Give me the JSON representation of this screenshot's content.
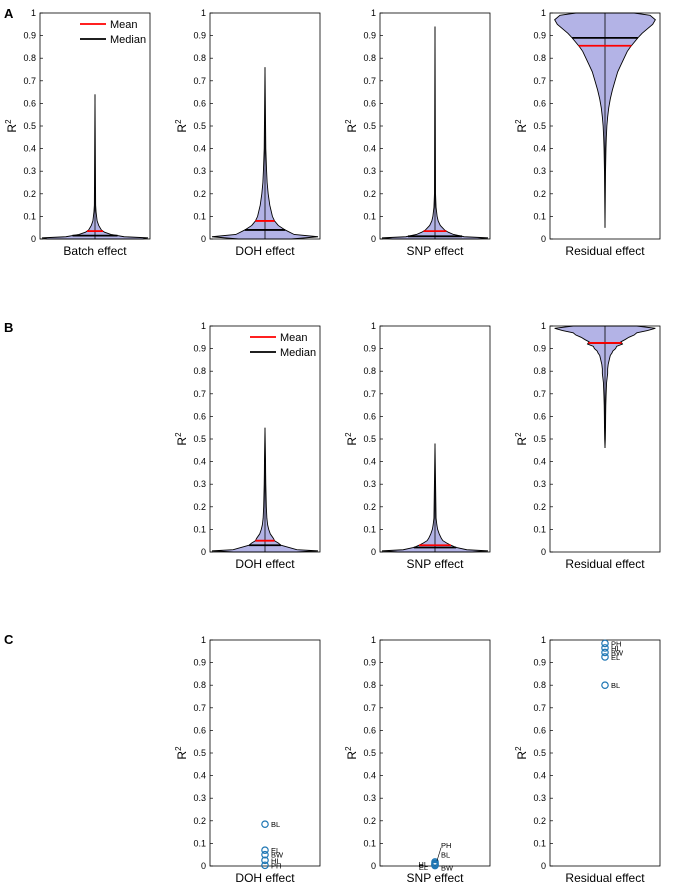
{
  "figure": {
    "colors": {
      "violin_fill": "#b3b3e6",
      "mean": "#ff0000",
      "median": "#000000",
      "point": "#1f77b4"
    },
    "legend": {
      "mean_label": "Mean",
      "median_label": "Median"
    },
    "ylabel_main": "R",
    "ylabel_sup": "2"
  },
  "chart_data": [
    {
      "panel": "A",
      "type": "violin",
      "ylim": [
        0,
        1
      ],
      "yticks": [
        "0",
        "0.1",
        "0.2",
        "0.3",
        "0.4",
        "0.5",
        "0.6",
        "0.7",
        "0.8",
        "0.9",
        "1"
      ],
      "legend": true,
      "subplots": [
        {
          "col": 0,
          "xlabel": "Batch effect",
          "mean": 0.035,
          "median": 0.015,
          "max": 0.64,
          "min": 0.0,
          "shape": [
            [
              0,
              0.9
            ],
            [
              0.005,
              1
            ],
            [
              0.01,
              0.55
            ],
            [
              0.02,
              0.3
            ],
            [
              0.03,
              0.18
            ],
            [
              0.04,
              0.12
            ],
            [
              0.06,
              0.07
            ],
            [
              0.08,
              0.04
            ],
            [
              0.1,
              0.03
            ],
            [
              0.12,
              0.02
            ],
            [
              0.15,
              0.012
            ],
            [
              0.64,
              0
            ]
          ]
        },
        {
          "col": 1,
          "xlabel": "DOH effect",
          "mean": 0.08,
          "median": 0.04,
          "max": 0.76,
          "min": 0.0,
          "shape": [
            [
              0,
              0.5
            ],
            [
              0.01,
              1
            ],
            [
              0.02,
              0.55
            ],
            [
              0.04,
              0.38
            ],
            [
              0.06,
              0.25
            ],
            [
              0.08,
              0.18
            ],
            [
              0.1,
              0.14
            ],
            [
              0.15,
              0.09
            ],
            [
              0.2,
              0.06
            ],
            [
              0.25,
              0.04
            ],
            [
              0.3,
              0.03
            ],
            [
              0.4,
              0.015
            ],
            [
              0.76,
              0
            ]
          ]
        },
        {
          "col": 2,
          "xlabel": "SNP effect",
          "mean": 0.035,
          "median": 0.012,
          "max": 0.94,
          "min": 0.0,
          "shape": [
            [
              0,
              0.8
            ],
            [
              0.005,
              1
            ],
            [
              0.01,
              0.55
            ],
            [
              0.02,
              0.35
            ],
            [
              0.03,
              0.25
            ],
            [
              0.04,
              0.18
            ],
            [
              0.06,
              0.1
            ],
            [
              0.08,
              0.06
            ],
            [
              0.1,
              0.04
            ],
            [
              0.14,
              0.02
            ],
            [
              0.2,
              0.01
            ],
            [
              0.94,
              0
            ]
          ]
        },
        {
          "col": 3,
          "xlabel": "Residual effect",
          "mean": 0.855,
          "median": 0.89,
          "max": 1.0,
          "min": 0.05,
          "shape": [
            [
              1.0,
              0.55
            ],
            [
              0.99,
              0.85
            ],
            [
              0.97,
              0.95
            ],
            [
              0.95,
              0.9
            ],
            [
              0.93,
              0.8
            ],
            [
              0.91,
              0.7
            ],
            [
              0.89,
              0.62
            ],
            [
              0.87,
              0.55
            ],
            [
              0.85,
              0.48
            ],
            [
              0.83,
              0.42
            ],
            [
              0.8,
              0.36
            ],
            [
              0.77,
              0.3
            ],
            [
              0.74,
              0.24
            ],
            [
              0.7,
              0.19
            ],
            [
              0.66,
              0.14
            ],
            [
              0.62,
              0.1
            ],
            [
              0.58,
              0.07
            ],
            [
              0.54,
              0.05
            ],
            [
              0.5,
              0.035
            ],
            [
              0.45,
              0.025
            ],
            [
              0.4,
              0.018
            ],
            [
              0.3,
              0.01
            ],
            [
              0.05,
              0
            ]
          ]
        }
      ]
    },
    {
      "panel": "B",
      "type": "violin",
      "ylim": [
        0,
        1
      ],
      "yticks": [
        "0",
        "0.1",
        "0.2",
        "0.3",
        "0.4",
        "0.5",
        "0.6",
        "0.7",
        "0.8",
        "0.9",
        "1"
      ],
      "legend": true,
      "subplots": [
        {
          "col": 1,
          "xlabel": "DOH effect",
          "mean": 0.05,
          "median": 0.03,
          "max": 0.55,
          "min": 0.0,
          "shape": [
            [
              0,
              0.6
            ],
            [
              0.005,
              1
            ],
            [
              0.01,
              0.6
            ],
            [
              0.02,
              0.45
            ],
            [
              0.03,
              0.3
            ],
            [
              0.04,
              0.25
            ],
            [
              0.05,
              0.18
            ],
            [
              0.06,
              0.16
            ],
            [
              0.07,
              0.13
            ],
            [
              0.08,
              0.1
            ],
            [
              0.1,
              0.07
            ],
            [
              0.12,
              0.05
            ],
            [
              0.15,
              0.035
            ],
            [
              0.2,
              0.025
            ],
            [
              0.25,
              0.02
            ],
            [
              0.3,
              0.015
            ],
            [
              0.35,
              0.012
            ],
            [
              0.41,
              0.01
            ],
            [
              0.55,
              0
            ]
          ]
        },
        {
          "col": 2,
          "xlabel": "SNP effect",
          "mean": 0.03,
          "median": 0.02,
          "max": 0.48,
          "min": 0.0,
          "shape": [
            [
              0,
              0.7
            ],
            [
              0.005,
              1
            ],
            [
              0.01,
              0.6
            ],
            [
              0.02,
              0.4
            ],
            [
              0.03,
              0.3
            ],
            [
              0.04,
              0.22
            ],
            [
              0.05,
              0.15
            ],
            [
              0.06,
              0.12
            ],
            [
              0.08,
              0.08
            ],
            [
              0.1,
              0.05
            ],
            [
              0.12,
              0.035
            ],
            [
              0.15,
              0.02
            ],
            [
              0.48,
              0
            ]
          ]
        },
        {
          "col": 3,
          "xlabel": "Residual effect",
          "mean": 0.925,
          "median": 0.925,
          "max": 1.0,
          "min": 0.46,
          "shape": [
            [
              1.0,
              0.6
            ],
            [
              0.99,
              0.95
            ],
            [
              0.98,
              0.8
            ],
            [
              0.97,
              0.6
            ],
            [
              0.96,
              0.55
            ],
            [
              0.95,
              0.45
            ],
            [
              0.94,
              0.38
            ],
            [
              0.93,
              0.3
            ],
            [
              0.92,
              0.33
            ],
            [
              0.91,
              0.22
            ],
            [
              0.9,
              0.2
            ],
            [
              0.89,
              0.15
            ],
            [
              0.88,
              0.13
            ],
            [
              0.87,
              0.1
            ],
            [
              0.86,
              0.09
            ],
            [
              0.85,
              0.08
            ],
            [
              0.83,
              0.06
            ],
            [
              0.81,
              0.05
            ],
            [
              0.79,
              0.05
            ],
            [
              0.77,
              0.04
            ],
            [
              0.75,
              0.03
            ],
            [
              0.72,
              0.025
            ],
            [
              0.69,
              0.02
            ],
            [
              0.65,
              0.015
            ],
            [
              0.6,
              0.012
            ],
            [
              0.55,
              0.01
            ],
            [
              0.5,
              0.006
            ],
            [
              0.46,
              0
            ]
          ]
        }
      ]
    },
    {
      "panel": "C",
      "type": "scatter",
      "ylim": [
        0,
        1
      ],
      "yticks": [
        "0",
        "0.1",
        "0.2",
        "0.3",
        "0.4",
        "0.5",
        "0.6",
        "0.7",
        "0.8",
        "0.9",
        "1"
      ],
      "legend": false,
      "subplots": [
        {
          "col": 1,
          "xlabel": "DOH effect",
          "points": [
            {
              "label": "BL",
              "y": 0.185,
              "side": "right"
            },
            {
              "label": "EL",
              "y": 0.07,
              "side": "right"
            },
            {
              "label": "BW",
              "y": 0.05,
              "side": "right"
            },
            {
              "label": "HL",
              "y": 0.025,
              "side": "right"
            },
            {
              "label": "PH",
              "y": 0.003,
              "side": "right"
            }
          ]
        },
        {
          "col": 2,
          "xlabel": "SNP effect",
          "points": [
            {
              "label": "PH",
              "y": 0.018,
              "side": "upper-right"
            },
            {
              "label": "BL",
              "y": 0.012,
              "side": "right"
            },
            {
              "label": "HL",
              "y": 0.008,
              "side": "left"
            },
            {
              "label": "EL",
              "y": 0.005,
              "side": "lower-left"
            },
            {
              "label": "BW",
              "y": 0.002,
              "side": "lower-right"
            }
          ]
        },
        {
          "col": 3,
          "xlabel": "Residual effect",
          "points": [
            {
              "label": "PH",
              "y": 0.985,
              "side": "right"
            },
            {
              "label": "HL",
              "y": 0.965,
              "side": "right"
            },
            {
              "label": "BW",
              "y": 0.945,
              "side": "right"
            },
            {
              "label": "EL",
              "y": 0.925,
              "side": "right"
            },
            {
              "label": "BL",
              "y": 0.8,
              "side": "right"
            }
          ]
        }
      ]
    }
  ]
}
